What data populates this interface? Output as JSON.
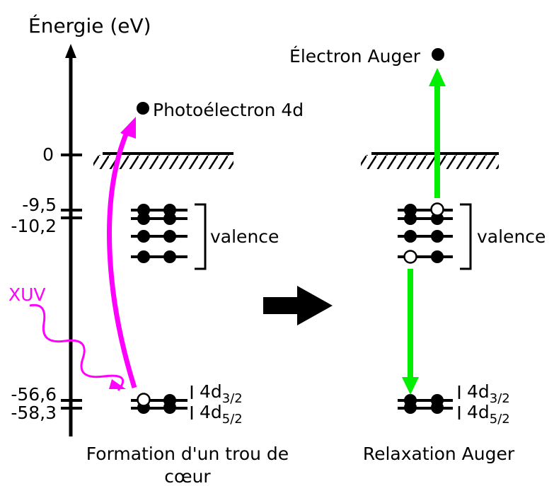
{
  "axis": {
    "title": "Énergie (eV)",
    "ticks": [
      "0",
      "-9,5",
      "-10,2",
      "-56,6",
      "-58,3"
    ]
  },
  "left": {
    "photoelectron": "Photoélectron 4d",
    "valence": "valence",
    "xuv": "XUV",
    "levels": [
      {
        "main": "4d",
        "sub": "3/2"
      },
      {
        "main": "4d",
        "sub": "5/2"
      }
    ],
    "caption": [
      "Formation d'un trou de",
      "cœur"
    ]
  },
  "right": {
    "auger_electron": "Électron Auger",
    "valence": "valence",
    "levels": [
      {
        "main": "4d",
        "sub": "3/2"
      },
      {
        "main": "4d",
        "sub": "5/2"
      }
    ],
    "caption": [
      "Relaxation Auger"
    ]
  }
}
